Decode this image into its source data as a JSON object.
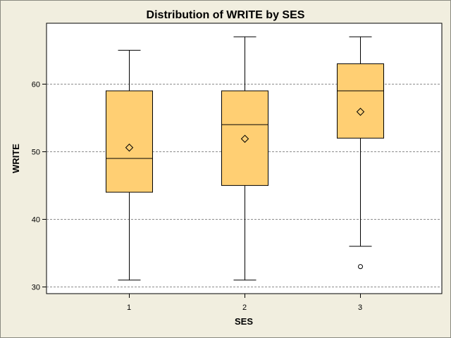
{
  "chart_data": {
    "type": "boxplot",
    "title": "Distribution of  WRITE  by  SES",
    "xlabel": "SES",
    "ylabel": "WRITE",
    "categories": [
      "1",
      "2",
      "3"
    ],
    "ylim": [
      29,
      69
    ],
    "yticks": [
      30,
      40,
      50,
      60
    ],
    "grid": "horizontal dashed at y ticks",
    "boxes": [
      {
        "category": "1",
        "min": 31,
        "q1": 44,
        "median": 49,
        "q3": 59,
        "max": 65,
        "mean": 50.6,
        "outliers": []
      },
      {
        "category": "2",
        "min": 31,
        "q1": 45,
        "median": 54,
        "q3": 59,
        "max": 67,
        "mean": 51.9,
        "outliers": []
      },
      {
        "category": "3",
        "min": 36,
        "q1": 52,
        "median": 59,
        "q3": 63,
        "max": 67,
        "mean": 55.9,
        "outliers": [
          33
        ]
      }
    ],
    "colors": {
      "box_fill": "#ffcf73",
      "line": "#000000",
      "plot_bg": "#ffffff",
      "page_bg": "#f1eedf",
      "grid": "#8c8c8c"
    }
  }
}
